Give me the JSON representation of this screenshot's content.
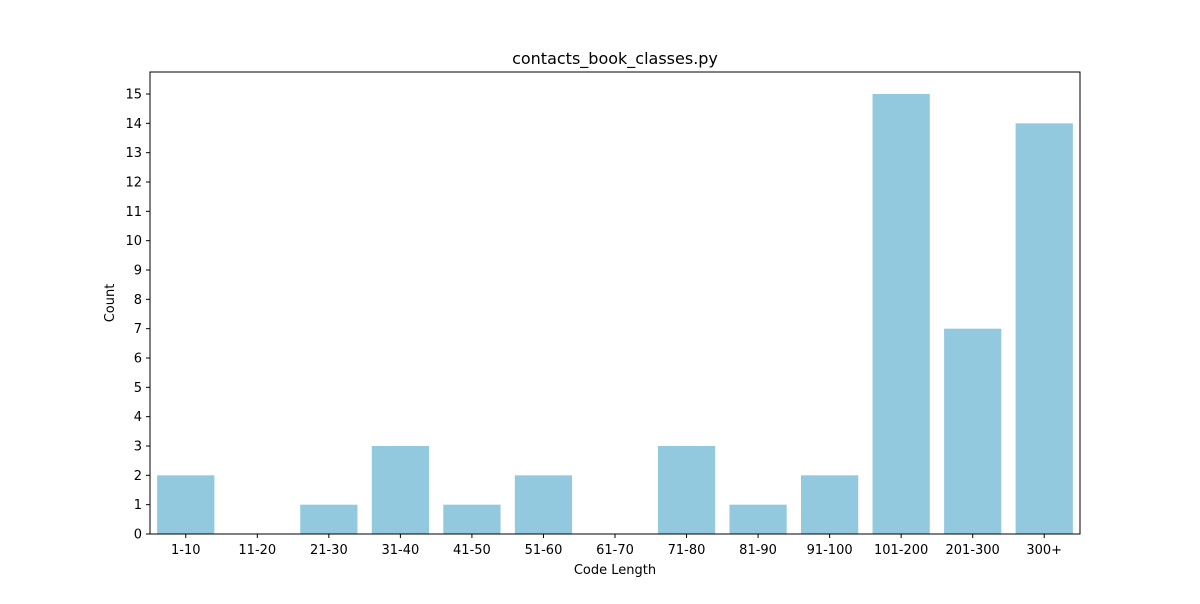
{
  "chart_data": {
    "type": "bar",
    "title": "contacts_book_classes.py",
    "xlabel": "Code Length",
    "ylabel": "Count",
    "categories": [
      "1-10",
      "11-20",
      "21-30",
      "31-40",
      "41-50",
      "51-60",
      "61-70",
      "71-80",
      "81-90",
      "91-100",
      "101-200",
      "201-300",
      "300+"
    ],
    "values": [
      2,
      0,
      1,
      3,
      1,
      2,
      0,
      3,
      1,
      2,
      15,
      7,
      14
    ],
    "ylim": [
      0,
      15.75
    ],
    "yticks": [
      0,
      1,
      2,
      3,
      4,
      5,
      6,
      7,
      8,
      9,
      10,
      11,
      12,
      13,
      14,
      15
    ],
    "grid": false,
    "bar_color": "#92c9df"
  }
}
